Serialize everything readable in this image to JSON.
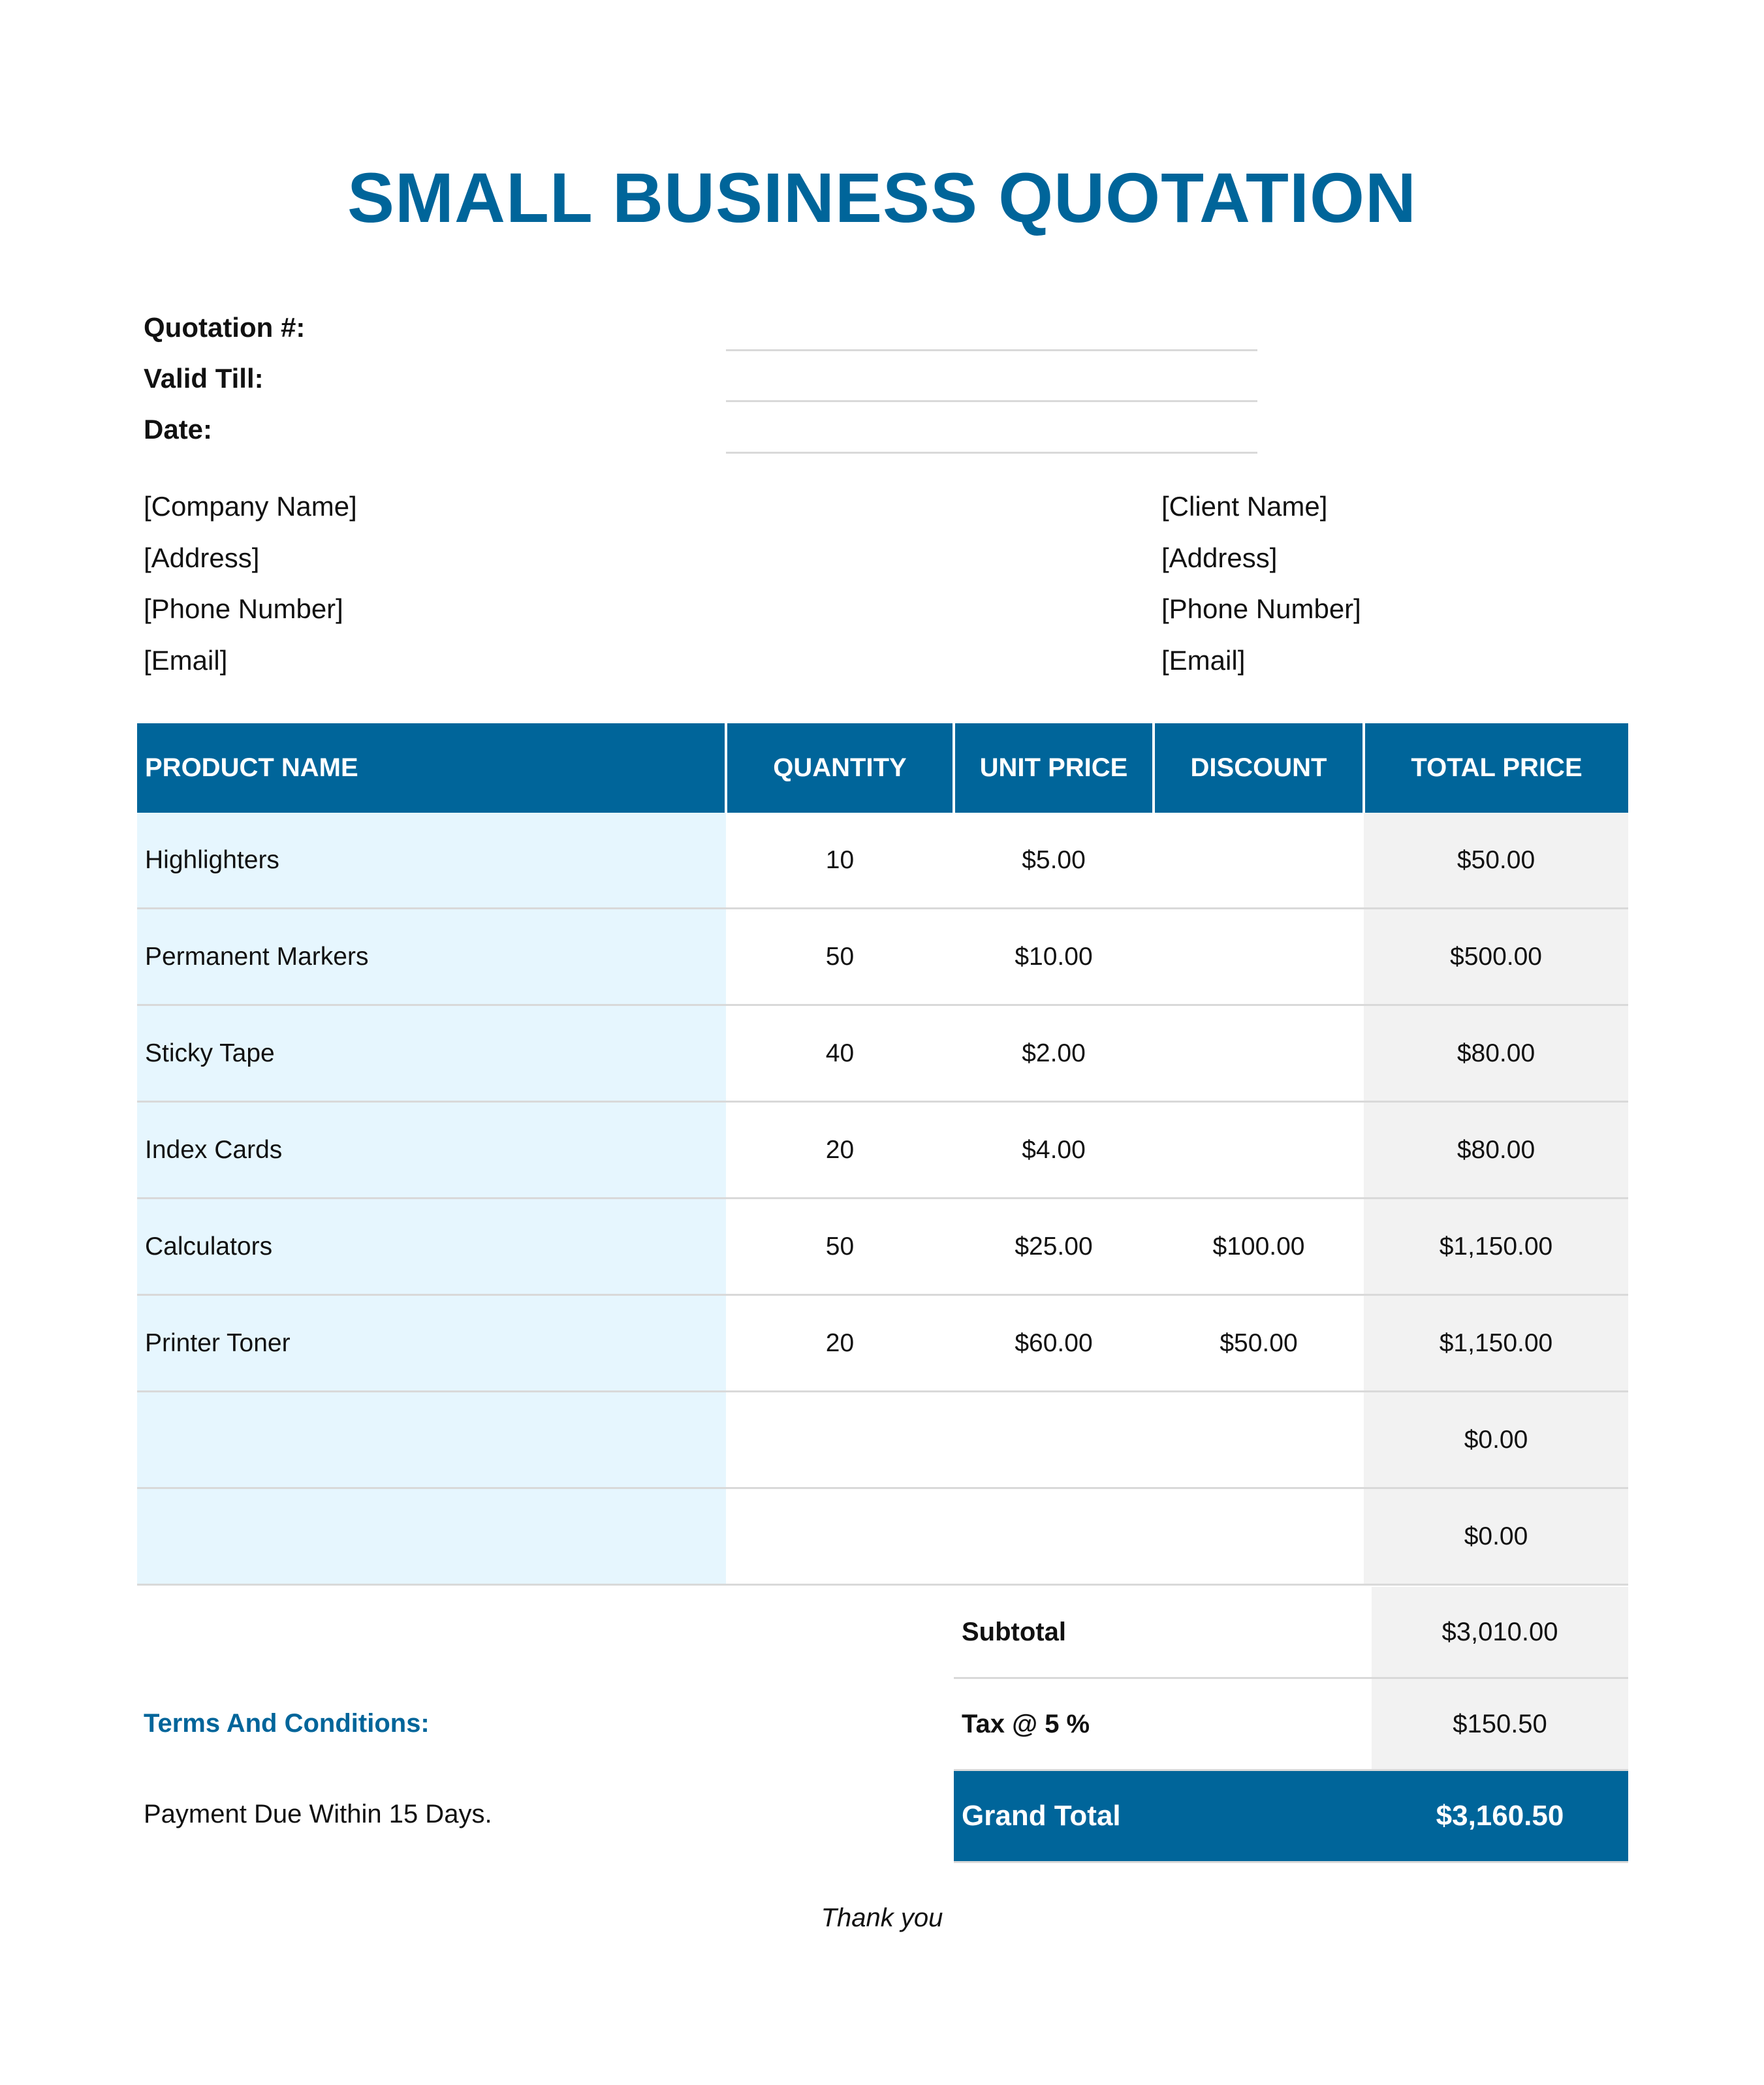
{
  "title": "SMALL BUSINESS QUOTATION",
  "meta": {
    "quotation_label": "Quotation #:",
    "valid_till_label": "Valid Till:",
    "date_label": "Date:"
  },
  "company": {
    "name": "[Company Name]",
    "address": "[Address]",
    "phone": "[Phone Number]",
    "email": "[Email]"
  },
  "client": {
    "name": "[Client Name]",
    "address": "[Address]",
    "phone": "[Phone Number]",
    "email": "[Email]"
  },
  "table": {
    "headers": [
      "PRODUCT NAME",
      "QUANTITY",
      "UNIT PRICE",
      "DISCOUNT",
      "TOTAL PRICE"
    ],
    "rows": [
      {
        "name": "Highlighters",
        "qty": "10",
        "unit": "$5.00",
        "discount": "",
        "total": "$50.00"
      },
      {
        "name": "Permanent Markers",
        "qty": "50",
        "unit": "$10.00",
        "discount": "",
        "total": "$500.00"
      },
      {
        "name": "Sticky Tape",
        "qty": "40",
        "unit": "$2.00",
        "discount": "",
        "total": "$80.00"
      },
      {
        "name": "Index Cards",
        "qty": "20",
        "unit": "$4.00",
        "discount": "",
        "total": "$80.00"
      },
      {
        "name": "Calculators",
        "qty": "50",
        "unit": "$25.00",
        "discount": "$100.00",
        "total": "$1,150.00"
      },
      {
        "name": "Printer Toner",
        "qty": "20",
        "unit": "$60.00",
        "discount": "$50.00",
        "total": "$1,150.00"
      },
      {
        "name": "",
        "qty": "",
        "unit": "",
        "discount": "",
        "total": "$0.00"
      },
      {
        "name": "",
        "qty": "",
        "unit": "",
        "discount": "",
        "total": "$0.00"
      }
    ]
  },
  "summary": {
    "subtotal_label": "Subtotal",
    "subtotal": "$3,010.00",
    "tax_label": "Tax @ 5 %",
    "tax": "$150.50",
    "grand_total_label": "Grand Total",
    "grand_total": "$3,160.50"
  },
  "terms": {
    "heading": "Terms And Conditions:",
    "text": "Payment Due Within 15 Days."
  },
  "footer": "Thank you",
  "colors": {
    "accent": "#00659a",
    "name_col_bg": "#e6f6fe",
    "total_col_bg": "#f2f2f2"
  }
}
